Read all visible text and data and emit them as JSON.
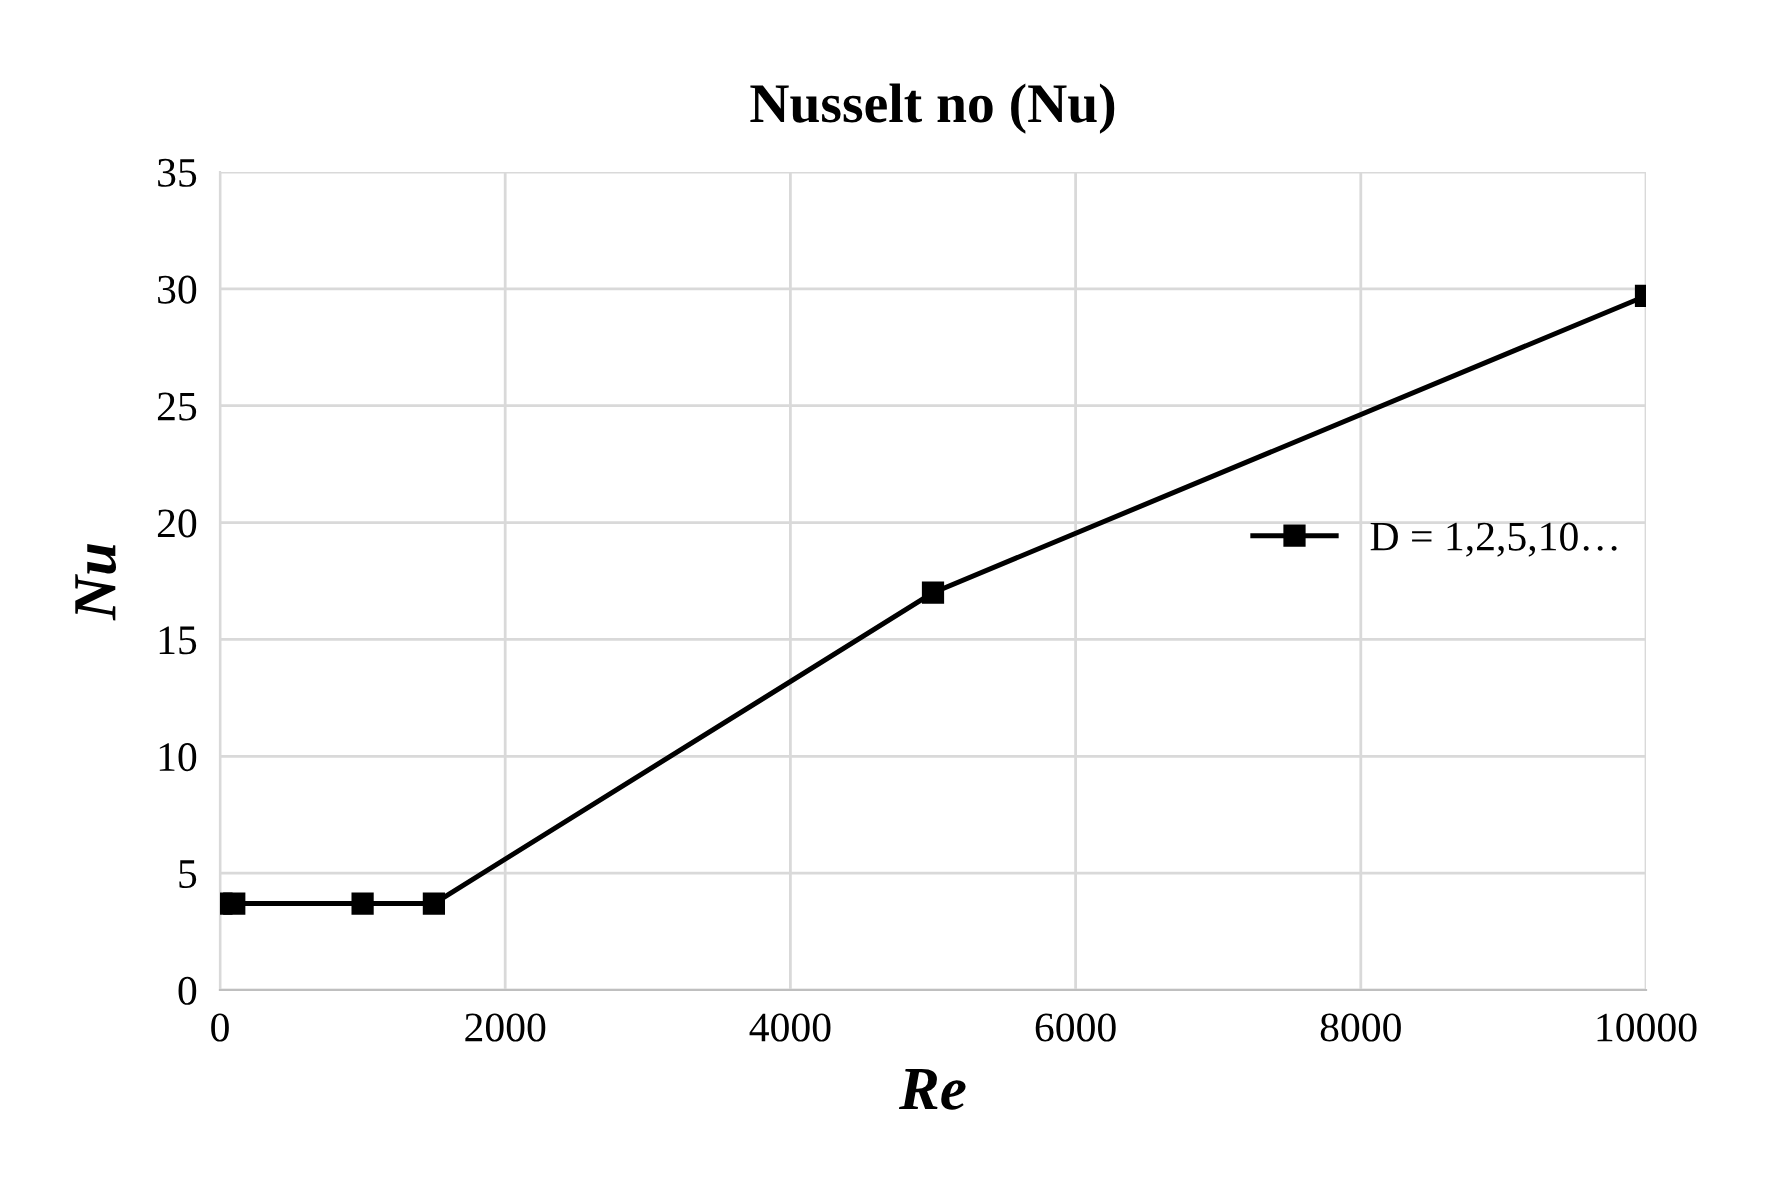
{
  "chart_data": {
    "type": "line",
    "title": "Nusselt no (Nu)",
    "xlabel": "Re",
    "ylabel": "Nu",
    "x": [
      10,
      100,
      1000,
      1500,
      5000,
      10000
    ],
    "series": [
      {
        "name": "D = 1,2,5,10…",
        "color": "#000000",
        "values": [
          3.7,
          3.7,
          3.7,
          3.7,
          17.0,
          29.7
        ]
      }
    ],
    "xlim": [
      0,
      10000
    ],
    "xticks": [
      0,
      2000,
      4000,
      6000,
      8000,
      10000
    ],
    "ylim": [
      0,
      35
    ],
    "yticks": [
      0,
      5,
      10,
      15,
      20,
      25,
      30,
      35
    ],
    "grid": true,
    "legend": "right",
    "marker": "square",
    "line_style": "solid"
  }
}
